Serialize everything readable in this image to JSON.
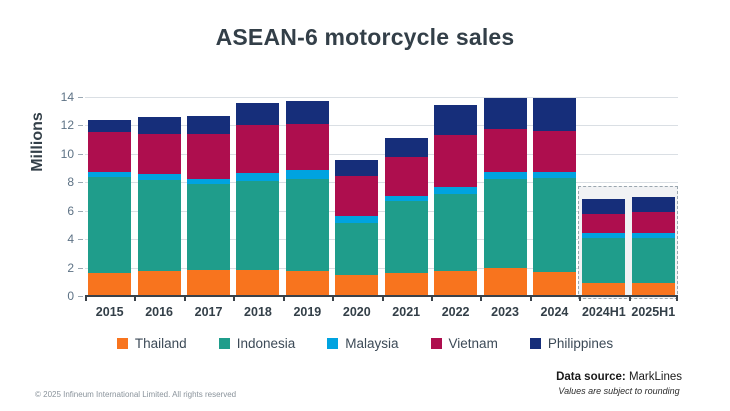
{
  "title": "ASEAN-6 motorcycle sales",
  "footer": {
    "copyright": "© 2025 Infineum International Limited. All rights reserved",
    "source_label": "Data source:",
    "source_value": "MarkLines",
    "note": "Values are subject to rounding"
  },
  "chart_data": {
    "type": "bar",
    "stacked": true,
    "title": "ASEAN-6 motorcycle sales",
    "ylabel": "Millions",
    "ylim": [
      0,
      14
    ],
    "yticks": [
      0,
      2,
      4,
      6,
      8,
      10,
      12,
      14
    ],
    "grid": true,
    "legend_position": "bottom",
    "units": "millions of units",
    "categories": [
      "2015",
      "2016",
      "2017",
      "2018",
      "2019",
      "2020",
      "2021",
      "2022",
      "2023",
      "2024",
      "2024H1",
      "2025H1"
    ],
    "series": [
      {
        "name": "Thailand",
        "color": "#F8741E",
        "values": [
          1.65,
          1.75,
          1.85,
          1.8,
          1.75,
          1.5,
          1.6,
          1.75,
          1.95,
          1.7,
          0.9,
          0.95
        ]
      },
      {
        "name": "Indonesia",
        "color": "#1F9D8B",
        "values": [
          6.75,
          6.4,
          6.05,
          6.3,
          6.5,
          3.65,
          5.05,
          5.45,
          6.25,
          6.6,
          3.2,
          3.1
        ]
      },
      {
        "name": "Malaysia",
        "color": "#00A3E0",
        "values": [
          0.35,
          0.4,
          0.3,
          0.55,
          0.6,
          0.45,
          0.4,
          0.5,
          0.55,
          0.4,
          0.3,
          0.35
        ]
      },
      {
        "name": "Vietnam",
        "color": "#AE0E4E",
        "values": [
          2.8,
          2.85,
          3.2,
          3.35,
          3.25,
          2.85,
          2.7,
          3.6,
          3.0,
          2.9,
          1.35,
          1.5
        ]
      },
      {
        "name": "Philippines",
        "color": "#162E7A",
        "values": [
          0.85,
          1.2,
          1.3,
          1.55,
          1.6,
          1.1,
          1.35,
          2.15,
          2.2,
          2.35,
          1.05,
          1.1
        ]
      }
    ],
    "totals": [
      12.4,
      12.6,
      12.7,
      13.55,
      13.7,
      9.55,
      11.1,
      13.45,
      13.95,
      13.95,
      6.8,
      7.0
    ],
    "highlight_box": {
      "categories": [
        "2024H1",
        "2025H1"
      ],
      "top_value": 7.75,
      "style": "dashed"
    }
  },
  "style_colors": {
    "title_text": "#333F48",
    "axis_line": "#3a4149",
    "gridline": "#dadfe4",
    "ytick_text": "#5D7285",
    "highlight_bg": "#f1f2f4",
    "highlight_border": "#9aa6ae"
  }
}
